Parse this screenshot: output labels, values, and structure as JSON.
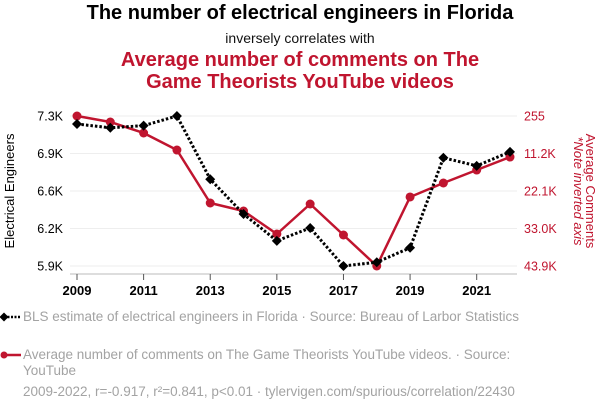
{
  "header": {
    "title": "The number of electrical engineers in Florida",
    "subtitle": "inversely correlates with",
    "title2": "Average number of comments on The Game Theorists YouTube videos"
  },
  "colors": {
    "series1": "#000000",
    "series2": "#c0152f",
    "grid": "#eeeeee",
    "legend_text": "#a3a3a3"
  },
  "chart_data": {
    "type": "line",
    "title": "The number of electrical engineers in Florida inversely correlates with Average number of comments on The Game Theorists YouTube videos",
    "x": [
      2009,
      2010,
      2011,
      2012,
      2013,
      2014,
      2015,
      2016,
      2017,
      2018,
      2019,
      2020,
      2021,
      2022
    ],
    "xticks": [
      "2009",
      "2011",
      "2013",
      "2015",
      "2017",
      "2019",
      "2021"
    ],
    "xlabel": "",
    "grid": true,
    "legend_position": "bottom",
    "left_axis": {
      "label": "Electrical Engineers",
      "range": [
        5900,
        7300
      ],
      "tick_values": [
        7300,
        6950,
        6600,
        6250,
        5900
      ],
      "tick_labels": [
        "7.3K",
        "6.9K",
        "6.6K",
        "6.2K",
        "5.9K"
      ],
      "inverted": false
    },
    "right_axis": {
      "label": "Average Comments",
      "note": "*Note inverted axis",
      "range": [
        255,
        43900
      ],
      "tick_values": [
        255,
        11200,
        22100,
        33000,
        43900
      ],
      "tick_labels": [
        "255",
        "11.2K",
        "22.1K",
        "33.0K",
        "43.9K"
      ],
      "inverted": true
    },
    "series": [
      {
        "name": "BLS estimate of electrical engineers in Florida · Source: Bureau of Larbor Statistics",
        "axis": "left",
        "style": "dotted-diamond",
        "values": [
          7225,
          7190,
          7210,
          7300,
          6710,
          6385,
          6135,
          6255,
          5900,
          5935,
          6070,
          6910,
          6835,
          6965
        ]
      },
      {
        "name": "Average number of comments on The Game Theorists YouTube videos. · Source: YouTube",
        "axis": "right",
        "style": "solid-circle",
        "values": [
          255,
          2000,
          5200,
          10150,
          25570,
          27900,
          34590,
          25860,
          34880,
          43900,
          23820,
          19750,
          15970,
          12190
        ]
      }
    ],
    "annotation": "2009-2022, r=-0.917, r²=0.841, p<0.01 · tylervigen.com/spurious/correlation/22430"
  },
  "legend": {
    "items": [
      {
        "label": "BLS estimate of electrical engineers in Florida · Source: Bureau of Larbor Statistics"
      },
      {
        "label": "Average number of comments on The Game Theorists YouTube videos. · Source: YouTube"
      }
    ]
  },
  "footer": {
    "text": "2009-2022, r=-0.917, r²=0.841, p<0.01 · tylervigen.com/spurious/correlation/22430"
  }
}
